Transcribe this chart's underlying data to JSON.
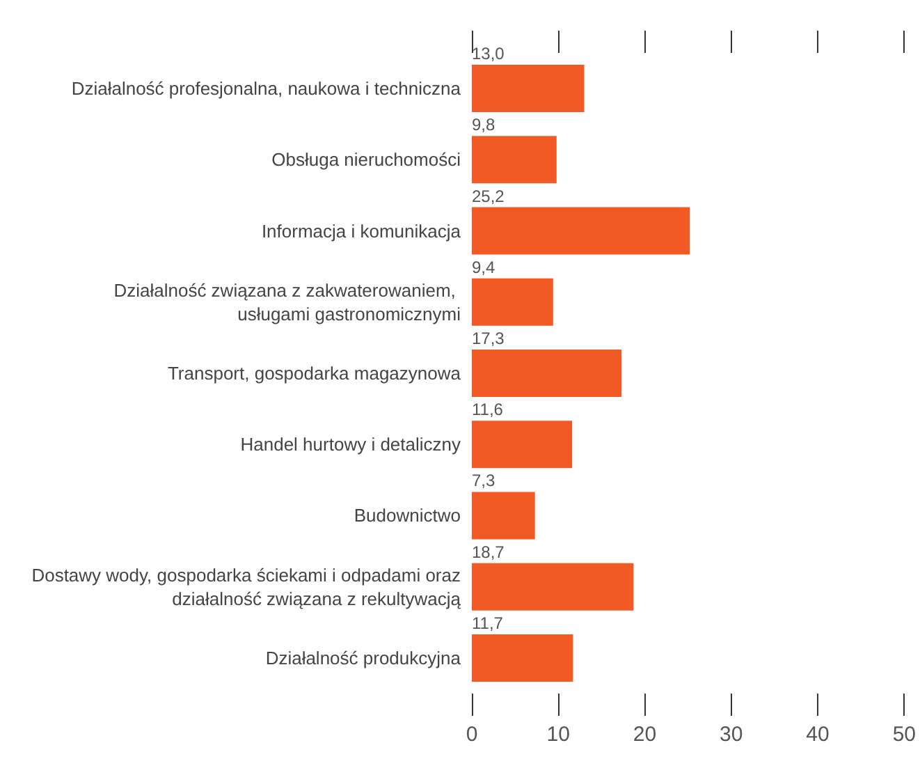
{
  "chart_data": {
    "type": "bar",
    "orientation": "horizontal",
    "categories": [
      "Działalność profesjonalna, naukowa i techniczna",
      "Obsługa nieruchomości",
      "Informacja i komunikacja",
      "Działalność związana z zakwaterowaniem, usługami gastronomicznymi",
      "Transport, gospodarka magazynowa",
      "Handel hurtowy i detaliczny",
      "Budownictwo",
      "Dostawy wody, gospodarka ściekami i odpadami oraz działalność związana z rekultywacją",
      "Działalność produkcyjna"
    ],
    "values": [
      13.0,
      9.8,
      25.2,
      9.4,
      17.3,
      11.6,
      7.3,
      18.7,
      11.7
    ],
    "value_labels": [
      "13,0",
      "9,8",
      "25,2",
      "9,4",
      "17,3",
      "11,6",
      "7,3",
      "18,7",
      "11,7"
    ],
    "color": "#f15a24",
    "xlim": [
      0,
      50
    ],
    "xticks": [
      0,
      10,
      20,
      30,
      40,
      50
    ],
    "grid": false
  }
}
